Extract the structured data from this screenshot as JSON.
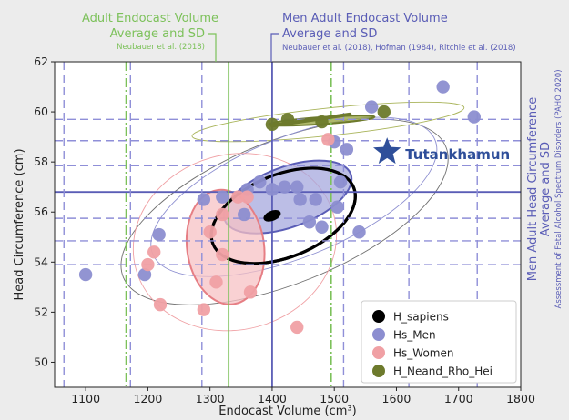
{
  "chart_data": {
    "type": "scatter",
    "xlabel": "Endocast Volume (cm³)",
    "ylabel": "Head Circumference (cm)",
    "xlim": [
      1050,
      1800
    ],
    "ylim": [
      49,
      62
    ],
    "xticks": [
      "1100",
      "1200",
      "1300",
      "1400",
      "1500",
      "1600",
      "1700",
      "1800"
    ],
    "yticks": [
      "50",
      "52",
      "54",
      "56",
      "58",
      "60",
      "62"
    ],
    "grid": false,
    "legend_position": "lower-right",
    "series": [
      {
        "name": "H_sapiens",
        "color": "#000000",
        "points": [
          [
            1400,
            55.85
          ]
        ]
      },
      {
        "name": "Hs_Men",
        "color": "#8c8ed0",
        "points": [
          [
            1100,
            53.5
          ],
          [
            1195,
            53.5
          ],
          [
            1218,
            55.1
          ],
          [
            1290,
            56.5
          ],
          [
            1320,
            56.6
          ],
          [
            1360,
            56.9
          ],
          [
            1380,
            57.2
          ],
          [
            1400,
            56.9
          ],
          [
            1420,
            57.0
          ],
          [
            1440,
            57.0
          ],
          [
            1445,
            56.5
          ],
          [
            1470,
            56.5
          ],
          [
            1480,
            55.4
          ],
          [
            1505,
            56.2
          ],
          [
            1510,
            57.2
          ],
          [
            1520,
            58.5
          ],
          [
            1500,
            58.8
          ],
          [
            1540,
            55.2
          ],
          [
            1560,
            60.2
          ],
          [
            1675,
            61.0
          ],
          [
            1725,
            59.8
          ],
          [
            1460,
            55.6
          ],
          [
            1355,
            55.9
          ]
        ]
      },
      {
        "name": "Hs_Women",
        "color": "#f0a0a4",
        "points": [
          [
            1200,
            53.9
          ],
          [
            1210,
            54.4
          ],
          [
            1220,
            52.3
          ],
          [
            1290,
            52.1
          ],
          [
            1310,
            53.2
          ],
          [
            1320,
            54.3
          ],
          [
            1320,
            55.9
          ],
          [
            1345,
            56.6
          ],
          [
            1360,
            56.6
          ],
          [
            1365,
            52.8
          ],
          [
            1490,
            58.9
          ],
          [
            1440,
            51.4
          ],
          [
            1300,
            55.2
          ]
        ]
      },
      {
        "name": "H_Neand_Rho_Hei",
        "color": "#6d7a2c",
        "points": [
          [
            1400,
            59.5
          ],
          [
            1425,
            59.7
          ],
          [
            1480,
            59.6
          ],
          [
            1580,
            60.0
          ]
        ]
      }
    ],
    "ellipses": [
      {
        "label": "H_sapiens 1SD",
        "cx": 1418,
        "cy": 55.85,
        "rx": 122,
        "ry": 1.65,
        "color": "#000000",
        "fill": "none"
      },
      {
        "label": "Hs_Men 1SD",
        "cx": 1425,
        "cy": 56.6,
        "rx": 108,
        "ry": 1.2,
        "color": "#5a5db6",
        "fill": "#a6a8de"
      },
      {
        "label": "Hs_Women 1SD",
        "cx": 1325,
        "cy": 54.6,
        "rx": 62,
        "ry": 2.3,
        "color": "#e67e84",
        "fill": "#f7c2c4"
      },
      {
        "label": "H_Neand 1SD",
        "cx": 1480,
        "cy": 59.65,
        "rx": 85,
        "ry": 0.14,
        "color": "#6d7a2c",
        "fill": "#93a03a"
      },
      {
        "label": "H_sapiens 2SD",
        "cx": 1420,
        "cy": 56.0,
        "rx": 280,
        "ry": 2.85,
        "color": "#6f6f6f",
        "fill": "none"
      },
      {
        "label": "Hs_Men 2SD",
        "cx": 1435,
        "cy": 56.6,
        "rx": 245,
        "ry": 2.4,
        "color": "#8c8ed0",
        "fill": "none"
      },
      {
        "label": "Hs_Women 2SD",
        "cx": 1340,
        "cy": 54.8,
        "rx": 165,
        "ry": 3.5,
        "color": "#f0a0a4",
        "fill": "none"
      },
      {
        "label": "H_Neand 2SD",
        "cx": 1490,
        "cy": 59.6,
        "rx": 220,
        "ry": 0.55,
        "color": "#a9b45a",
        "fill": "none"
      }
    ],
    "reference_lines": {
      "men_endocast_volume": {
        "mean": 1400,
        "sd_lines": [
          1065,
          1172,
          1287,
          1515,
          1620,
          1730
        ]
      },
      "adult_endocast_volume": {
        "mean": 1330,
        "sd_lines": [
          1165,
          1495
        ]
      },
      "men_head_circumference": {
        "mean": 56.8,
        "sd_lines": [
          53.9,
          54.85,
          55.75,
          57.85,
          58.85,
          59.7
        ]
      }
    },
    "star": {
      "label": "Tutankhamun",
      "x": 1585,
      "y": 58.4,
      "color": "#2f4f9a"
    }
  },
  "annotations": {
    "adult_line1": "Adult Endocast Volume",
    "adult_line2": "Average and SD",
    "adult_ref": "Neubauer et al. (2018)",
    "men_line1": "Men Adult Endocast Volume",
    "men_line2": "Average and SD",
    "men_ref": "Neubauer et al. (2018), Hofman (1984), Ritchie et al. (2018)",
    "right_line1": "Men Adult Head Circumference",
    "right_line2": "Average and SD",
    "right_ref": "Assessment of Fetal Alcohol Spectrum Disorders (PAHO 2020)"
  },
  "colors": {
    "green": "#7cc15a",
    "blue": "#5a5db6",
    "dash_blue": "#8f8fd8",
    "star": "#2f4f9a"
  }
}
